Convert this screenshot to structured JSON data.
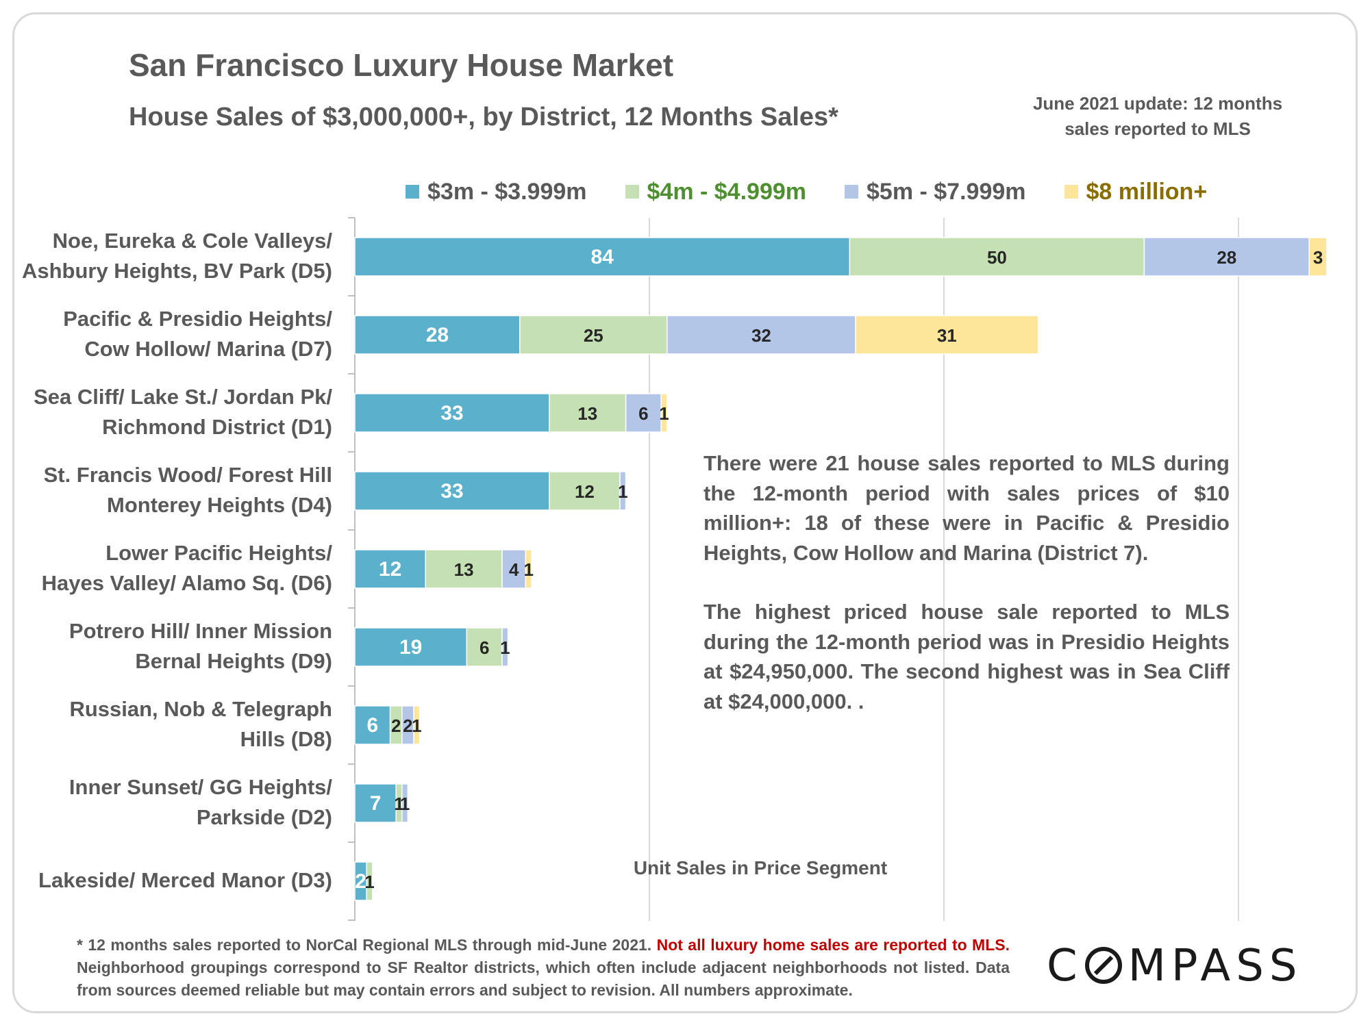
{
  "header": {
    "title": "San Francisco Luxury House Market",
    "subtitle": "House Sales of $3,000,000+, by District, 12 Months Sales*",
    "update_line1": "June 2021 update: 12 months",
    "update_line2": "sales reported to MLS"
  },
  "colors": {
    "s1": "#5bb1cc",
    "s2": "#c5e1b3",
    "s3": "#b4c6e7",
    "s4": "#fde599",
    "legend_text": [
      "#595959",
      "#4e8f2f",
      "#595959",
      "#8a6d00"
    ],
    "label_on_bar": [
      "#ffffff",
      "#262626",
      "#262626",
      "#262626"
    ]
  },
  "chart_data": {
    "type": "bar",
    "orientation": "horizontal",
    "stacked": true,
    "categories": [
      [
        "Noe, Eureka & Cole Valleys/",
        "Ashbury Heights, BV Park (D5)"
      ],
      [
        "Pacific & Presidio Heights/",
        "Cow Hollow/ Marina (D7)"
      ],
      [
        "Sea Cliff/ Lake St./ Jordan Pk/",
        "Richmond District (D1)"
      ],
      [
        "St. Francis Wood/ Forest Hill",
        "Monterey Heights (D4)"
      ],
      [
        "Lower Pacific Heights/",
        "Hayes Valley/ Alamo Sq. (D6)"
      ],
      [
        "Potrero Hill/ Inner Mission",
        "Bernal Heights (D9)"
      ],
      [
        "Russian, Nob & Telegraph",
        "Hills (D8)"
      ],
      [
        "Inner Sunset/ GG Heights/",
        "Parkside (D2)"
      ],
      [
        "Lakeside/ Merced Manor (D3)"
      ]
    ],
    "series": [
      {
        "name": "$3m - $3.999m",
        "values": [
          84,
          28,
          33,
          33,
          12,
          19,
          6,
          7,
          2
        ]
      },
      {
        "name": "$4m - $4.999m",
        "values": [
          50,
          25,
          13,
          12,
          13,
          6,
          2,
          1,
          1
        ]
      },
      {
        "name": "$5m - $7.999m",
        "values": [
          28,
          32,
          6,
          1,
          4,
          1,
          2,
          1,
          0
        ]
      },
      {
        "name": "$8 million+",
        "values": [
          3,
          31,
          1,
          0,
          1,
          0,
          1,
          0,
          0
        ]
      }
    ],
    "xlim": [
      0,
      166
    ],
    "gridlines": [
      50,
      100,
      150
    ],
    "xlabel": "Unit Sales in Price Segment",
    "legend_position": "top"
  },
  "note": {
    "p1": "There were 21 house sales reported to MLS during the 12-month period with sales prices of $10 million+:  18 of these were in Pacific & Presidio Heights, Cow Hollow and Marina (District 7).",
    "p2": "The highest priced house sale reported to MLS during the 12-month period was in Presidio Heights at $24,950,000. The second highest was in Sea Cliff at $24,000,000. ."
  },
  "footnote": {
    "part1": "* 12 months sales reported to NorCal Regional MLS through mid-June 2021. ",
    "part2": "Not all luxury home sales are reported to MLS.",
    "part3": " Neighborhood groupings correspond to SF Realtor districts, which often include adjacent neighborhoods not listed. Data from sources deemed reliable but may contain errors and subject to revision. All numbers approximate."
  },
  "logo": {
    "text": "COMPASS"
  }
}
